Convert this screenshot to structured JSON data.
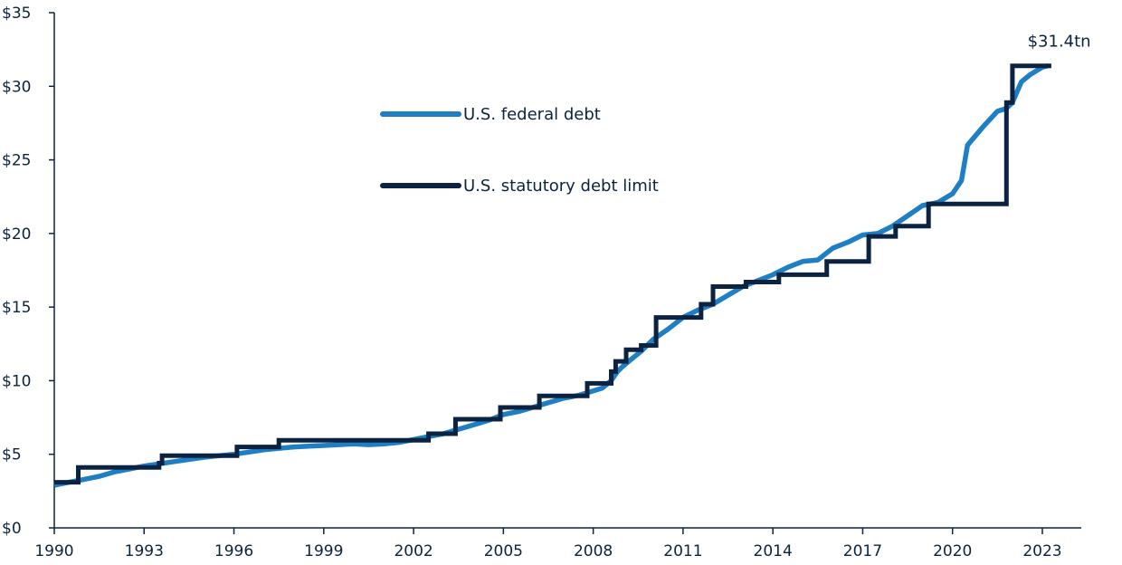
{
  "chart_data": {
    "type": "line",
    "title": "",
    "xlabel": "",
    "ylabel": "",
    "xlim": [
      1990,
      2024.3
    ],
    "ylim": [
      0,
      35
    ],
    "x_ticks": [
      1990,
      1993,
      1996,
      1999,
      2002,
      2005,
      2008,
      2011,
      2014,
      2017,
      2020,
      2023
    ],
    "x_tick_labels": [
      "1990",
      "1993",
      "1996",
      "1999",
      "2002",
      "2005",
      "2008",
      "2011",
      "2014",
      "2017",
      "2020",
      "2023"
    ],
    "y_ticks": [
      0,
      5,
      10,
      15,
      20,
      25,
      30,
      35
    ],
    "y_tick_labels": [
      "$0",
      "$5",
      "$10",
      "$15",
      "$20",
      "$25",
      "$30",
      "$35"
    ],
    "grid": false,
    "legend": {
      "placement": "upper-left-center"
    },
    "annotations": [
      {
        "text": "$31.4tn",
        "x": 2023.2,
        "y": 31.4
      }
    ],
    "series": [
      {
        "name": "U.S. federal debt",
        "color": "#1f7fc4",
        "step": false,
        "x": [
          1990.0,
          1990.5,
          1991.0,
          1991.5,
          1992.0,
          1992.5,
          1993.0,
          1993.5,
          1994.0,
          1994.5,
          1995.0,
          1995.5,
          1996.0,
          1996.5,
          1997.0,
          1997.5,
          1998.0,
          1998.5,
          1999.0,
          1999.5,
          2000.0,
          2000.5,
          2001.0,
          2001.5,
          2002.0,
          2002.5,
          2003.0,
          2003.5,
          2004.0,
          2004.5,
          2005.0,
          2005.5,
          2006.0,
          2006.5,
          2007.0,
          2007.5,
          2008.0,
          2008.3,
          2008.6,
          2008.8,
          2009.0,
          2009.3,
          2009.6,
          2010.0,
          2010.5,
          2011.0,
          2011.5,
          2012.0,
          2012.5,
          2013.0,
          2013.5,
          2014.0,
          2014.5,
          2015.0,
          2015.5,
          2016.0,
          2016.5,
          2017.0,
          2017.5,
          2018.0,
          2018.5,
          2019.0,
          2019.5,
          2020.0,
          2020.1,
          2020.2,
          2020.3,
          2020.5,
          2021.0,
          2021.5,
          2021.8,
          2022.0,
          2022.3,
          2022.6,
          2023.0,
          2023.2
        ],
        "values": [
          2.9,
          3.1,
          3.3,
          3.5,
          3.8,
          4.0,
          4.2,
          4.35,
          4.5,
          4.65,
          4.8,
          4.9,
          5.0,
          5.15,
          5.3,
          5.4,
          5.5,
          5.55,
          5.6,
          5.65,
          5.7,
          5.65,
          5.7,
          5.8,
          6.0,
          6.2,
          6.4,
          6.7,
          7.0,
          7.3,
          7.7,
          7.9,
          8.2,
          8.5,
          8.8,
          9.0,
          9.3,
          9.5,
          10.0,
          10.6,
          11.0,
          11.5,
          12.0,
          12.8,
          13.5,
          14.3,
          14.8,
          15.2,
          15.8,
          16.4,
          16.8,
          17.2,
          17.7,
          18.1,
          18.2,
          19.0,
          19.4,
          19.9,
          20.0,
          20.5,
          21.2,
          21.9,
          22.1,
          22.7,
          23.0,
          23.3,
          23.6,
          26.0,
          27.2,
          28.3,
          28.5,
          28.9,
          30.3,
          30.8,
          31.3,
          31.4
        ]
      },
      {
        "name": "U.S. statutory debt limit",
        "color": "#0b2341",
        "step": true,
        "x": [
          1990.0,
          1990.8,
          1993.5,
          1993.6,
          1996.1,
          1997.5,
          2002.5,
          2003.4,
          2004.9,
          2006.2,
          2007.8,
          2008.6,
          2008.75,
          2009.1,
          2009.6,
          2010.1,
          2011.6,
          2012.0,
          2013.1,
          2014.2,
          2015.8,
          2017.2,
          2018.1,
          2019.2,
          2021.8,
          2022.0,
          2023.3
        ],
        "values": [
          3.1,
          4.1,
          4.4,
          4.9,
          5.5,
          5.95,
          6.4,
          7.384,
          8.184,
          8.965,
          9.815,
          10.615,
          11.315,
          12.104,
          12.394,
          14.294,
          15.194,
          16.394,
          16.7,
          17.2,
          18.1,
          19.8,
          20.5,
          22.0,
          28.9,
          31.381,
          31.381
        ]
      }
    ]
  }
}
